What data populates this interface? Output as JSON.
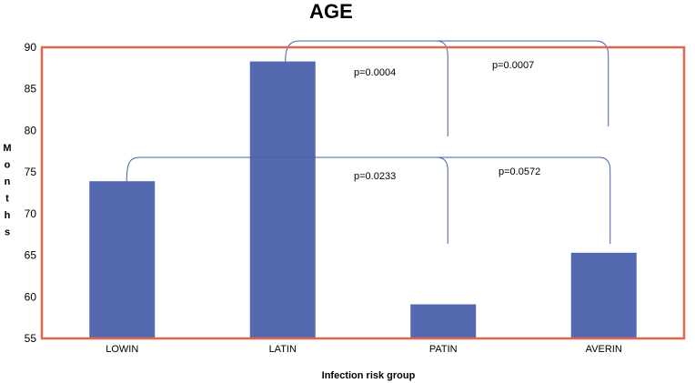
{
  "chart_data": {
    "type": "bar",
    "title": "AGE",
    "xlabel": "Infection risk group",
    "ylabel": "Months",
    "categories": [
      "LOWIN",
      "LATIN",
      "PATIN",
      "AVERIN"
    ],
    "values": [
      73.9,
      88.3,
      59.1,
      65.3
    ],
    "ylim": [
      55,
      90
    ],
    "yticks": [
      "55",
      "60",
      "65",
      "70",
      "75",
      "80",
      "85",
      "90"
    ],
    "grid": false,
    "legend": "none",
    "annotations": [
      {
        "from": "LATIN",
        "to": "PATIN",
        "label": "p=0.0004"
      },
      {
        "from": "LATIN",
        "to": "AVERIN",
        "label": "p=0.0007"
      },
      {
        "from": "LOWIN",
        "to": "PATIN",
        "label": "p=0.0233"
      },
      {
        "from": "LOWIN",
        "to": "AVERIN",
        "label": "p=0.0572"
      }
    ],
    "colors": {
      "bar": "#5569b0",
      "frame": "#e0674a",
      "bracket": "#4a5fa8"
    }
  }
}
